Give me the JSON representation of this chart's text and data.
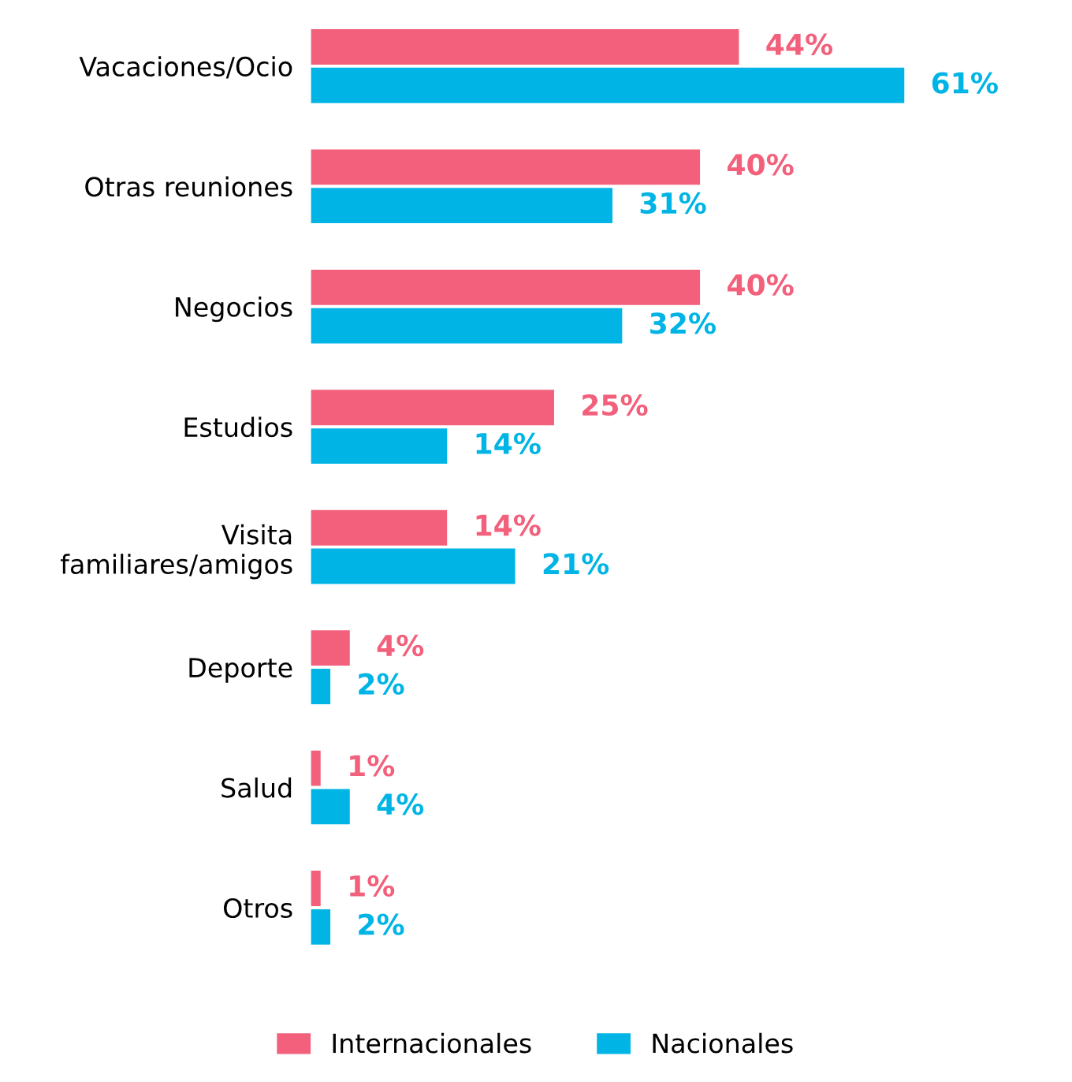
{
  "chart_data": {
    "type": "bar",
    "orientation": "horizontal",
    "categories": [
      "Vacaciones/Ocio",
      "Otras reuniones",
      "Negocios",
      "Estudios",
      "Visita\nfamiliares/amigos",
      "Deporte",
      "Salud",
      "Otros"
    ],
    "series": [
      {
        "name": "Internacionales",
        "color": "#f2607c",
        "values": [
          44,
          40,
          40,
          25,
          14,
          4,
          1,
          1
        ],
        "value_labels": [
          "44%",
          "40%",
          "40%",
          "25%",
          "14%",
          "4%",
          "1%",
          "1%"
        ]
      },
      {
        "name": "Nacionales",
        "color": "#00b5e5",
        "values": [
          61,
          31,
          32,
          14,
          21,
          2,
          4,
          2
        ],
        "value_labels": [
          "61%",
          "31%",
          "32%",
          "14%",
          "21%",
          "2%",
          "4%",
          "2%"
        ]
      }
    ],
    "legend": "bottom",
    "grid": false,
    "tick_labels": "y"
  }
}
